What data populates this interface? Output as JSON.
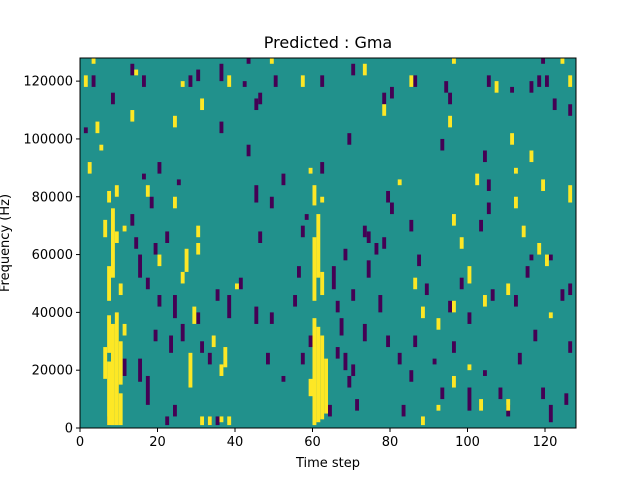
{
  "chart_data": {
    "type": "heatmap",
    "title": "Predicted : Gma",
    "xlabel": "Time step",
    "ylabel": "Frequency (Hz)",
    "xlim": [
      0,
      128
    ],
    "ylim": [
      0,
      128000
    ],
    "x_ticks": [
      0,
      20,
      40,
      60,
      80,
      100,
      120
    ],
    "y_ticks": [
      0,
      20000,
      40000,
      60000,
      80000,
      100000,
      120000
    ],
    "x_tick_labels": [
      "0",
      "20",
      "40",
      "60",
      "80",
      "100",
      "120"
    ],
    "y_tick_labels": [
      "0",
      "20000",
      "40000",
      "60000",
      "80000",
      "100000",
      "120000"
    ],
    "grid": false,
    "legend": "none",
    "colormap": "viridis",
    "levels": {
      "low": -1,
      "mid": 0,
      "high": 1
    },
    "colors": {
      "low": "#440154",
      "mid": "#21918c",
      "high": "#fde725"
    },
    "background_level": 0,
    "freq_bin_hz": 4000,
    "time_bin": 1,
    "high_cells": [
      [
        7,
        1000,
        23000
      ],
      [
        8,
        1000,
        36000
      ],
      [
        9,
        1000,
        40000
      ],
      [
        10,
        1000,
        12000
      ],
      [
        10,
        15000,
        30000
      ],
      [
        6,
        17000,
        28000
      ],
      [
        7,
        26000,
        39000
      ],
      [
        11,
        32000,
        36000
      ],
      [
        8,
        52000,
        76000
      ],
      [
        7,
        44000,
        56000
      ],
      [
        10,
        46000,
        50000
      ],
      [
        6,
        66000,
        72000
      ],
      [
        9,
        64000,
        68000
      ],
      [
        9,
        80000,
        84000
      ],
      [
        7,
        78000,
        82000
      ],
      [
        11,
        68000,
        70000
      ],
      [
        59,
        11000,
        17000
      ],
      [
        60,
        1000,
        38000
      ],
      [
        61,
        2000,
        35000
      ],
      [
        62,
        3000,
        32000
      ],
      [
        63,
        5000,
        24000
      ],
      [
        60,
        44000,
        66000
      ],
      [
        61,
        52000,
        74000
      ],
      [
        62,
        46000,
        54000
      ],
      [
        60,
        77000,
        84000
      ],
      [
        62,
        78000,
        80000
      ],
      [
        59,
        88000,
        90000
      ],
      [
        31,
        1000,
        4000
      ],
      [
        33,
        1000,
        4000
      ],
      [
        36,
        2000,
        4000
      ],
      [
        38,
        1000,
        4000
      ],
      [
        28,
        14000,
        26000
      ],
      [
        34,
        28000,
        32000
      ],
      [
        37,
        21000,
        28000
      ],
      [
        36,
        18000,
        22000
      ],
      [
        29,
        36000,
        42000
      ],
      [
        40,
        48000,
        50000
      ],
      [
        27,
        54000,
        62000
      ],
      [
        26,
        50000,
        54000
      ],
      [
        30,
        60000,
        64000
      ],
      [
        20,
        56000,
        60000
      ],
      [
        17,
        80000,
        84000
      ],
      [
        24,
        76000,
        80000
      ],
      [
        30,
        66000,
        70000
      ],
      [
        88,
        1000,
        4000
      ],
      [
        92,
        6000,
        8000
      ],
      [
        103,
        6000,
        10000
      ],
      [
        96,
        14000,
        18000
      ],
      [
        110,
        6000,
        10000
      ],
      [
        100,
        20000,
        22000
      ],
      [
        92,
        34000,
        38000
      ],
      [
        88,
        38000,
        42000
      ],
      [
        96,
        40000,
        44000
      ],
      [
        104,
        42000,
        46000
      ],
      [
        86,
        48000,
        52000
      ],
      [
        100,
        50000,
        56000
      ],
      [
        110,
        46000,
        50000
      ],
      [
        120,
        56000,
        60000
      ],
      [
        118,
        60000,
        64000
      ],
      [
        121,
        38000,
        40000
      ],
      [
        98,
        62000,
        66000
      ],
      [
        112,
        76000,
        80000
      ],
      [
        102,
        84000,
        88000
      ],
      [
        96,
        70000,
        74000
      ],
      [
        114,
        66000,
        70000
      ],
      [
        3,
        126000,
        128000
      ],
      [
        14,
        122000,
        124000
      ],
      [
        26,
        118000,
        120000
      ],
      [
        38,
        118000,
        122000
      ],
      [
        49,
        126000,
        128000
      ],
      [
        57,
        118000,
        122000
      ],
      [
        73,
        122000,
        126000
      ],
      [
        85,
        118000,
        122000
      ],
      [
        96,
        126000,
        128000
      ],
      [
        107,
        116000,
        120000
      ],
      [
        111,
        98000,
        102000
      ],
      [
        116,
        92000,
        96000
      ],
      [
        124,
        126000,
        128000
      ],
      [
        126,
        118000,
        122000
      ],
      [
        4,
        102000,
        106000
      ],
      [
        13,
        106000,
        110000
      ],
      [
        24,
        104000,
        108000
      ],
      [
        31,
        110000,
        114000
      ],
      [
        78,
        108000,
        112000
      ],
      [
        82,
        84000,
        86000
      ],
      [
        95,
        104000,
        108000
      ],
      [
        112,
        88000,
        90000
      ],
      [
        119,
        82000,
        86000
      ],
      [
        126,
        78000,
        84000
      ],
      [
        2,
        88000,
        92000
      ],
      [
        5,
        96000,
        98000
      ],
      [
        1,
        118000,
        122000
      ]
    ],
    "low_cells": [
      [
        7,
        1000,
        4000
      ],
      [
        22,
        1000,
        4000
      ],
      [
        33,
        1000,
        4000
      ],
      [
        35,
        1000,
        4000
      ],
      [
        24,
        4000,
        8000
      ],
      [
        17,
        8000,
        18000
      ],
      [
        15,
        16000,
        24000
      ],
      [
        11,
        18000,
        24000
      ],
      [
        19,
        30000,
        34000
      ],
      [
        23,
        26000,
        32000
      ],
      [
        26,
        30000,
        36000
      ],
      [
        24,
        38000,
        46000
      ],
      [
        20,
        42000,
        46000
      ],
      [
        17,
        48000,
        52000
      ],
      [
        15,
        52000,
        60000
      ],
      [
        19,
        60000,
        64000
      ],
      [
        22,
        64000,
        68000
      ],
      [
        14,
        62000,
        66000
      ],
      [
        13,
        70000,
        74000
      ],
      [
        18,
        76000,
        80000
      ],
      [
        16,
        86000,
        88000
      ],
      [
        20,
        88000,
        92000
      ],
      [
        25,
        84000,
        86000
      ],
      [
        30,
        36000,
        40000
      ],
      [
        31,
        26000,
        30000
      ],
      [
        33,
        22000,
        26000
      ],
      [
        35,
        44000,
        48000
      ],
      [
        38,
        38000,
        46000
      ],
      [
        41,
        48000,
        52000
      ],
      [
        45,
        36000,
        42000
      ],
      [
        46,
        64000,
        68000
      ],
      [
        49,
        36000,
        40000
      ],
      [
        48,
        22000,
        26000
      ],
      [
        52,
        16000,
        18000
      ],
      [
        57,
        22000,
        26000
      ],
      [
        59,
        28000,
        32000
      ],
      [
        55,
        42000,
        46000
      ],
      [
        57,
        66000,
        70000
      ],
      [
        56,
        52000,
        56000
      ],
      [
        58,
        72000,
        74000
      ],
      [
        49,
        76000,
        80000
      ],
      [
        45,
        78000,
        84000
      ],
      [
        52,
        84000,
        88000
      ],
      [
        43,
        94000,
        98000
      ],
      [
        36,
        102000,
        106000
      ],
      [
        62,
        88000,
        92000
      ],
      [
        65,
        48000,
        56000
      ],
      [
        66,
        40000,
        44000
      ],
      [
        67,
        32000,
        38000
      ],
      [
        68,
        20000,
        26000
      ],
      [
        69,
        14000,
        18000
      ],
      [
        71,
        6000,
        10000
      ],
      [
        64,
        4000,
        8000
      ],
      [
        66,
        24000,
        28000
      ],
      [
        70,
        18000,
        22000
      ],
      [
        68,
        58000,
        62000
      ],
      [
        70,
        44000,
        48000
      ],
      [
        73,
        30000,
        36000
      ],
      [
        74,
        52000,
        58000
      ],
      [
        77,
        40000,
        46000
      ],
      [
        78,
        62000,
        66000
      ],
      [
        79,
        28000,
        32000
      ],
      [
        82,
        22000,
        26000
      ],
      [
        83,
        4000,
        8000
      ],
      [
        85,
        16000,
        20000
      ],
      [
        85,
        68000,
        72000
      ],
      [
        86,
        28000,
        32000
      ],
      [
        87,
        56000,
        60000
      ],
      [
        89,
        46000,
        50000
      ],
      [
        91,
        22000,
        24000
      ],
      [
        93,
        10000,
        14000
      ],
      [
        95,
        40000,
        44000
      ],
      [
        96,
        26000,
        30000
      ],
      [
        98,
        48000,
        52000
      ],
      [
        100,
        36000,
        40000
      ],
      [
        100,
        6000,
        14000
      ],
      [
        103,
        68000,
        72000
      ],
      [
        104,
        18000,
        20000
      ],
      [
        106,
        44000,
        48000
      ],
      [
        108,
        10000,
        14000
      ],
      [
        110,
        4000,
        8000
      ],
      [
        112,
        42000,
        46000
      ],
      [
        113,
        22000,
        26000
      ],
      [
        115,
        52000,
        56000
      ],
      [
        117,
        30000,
        34000
      ],
      [
        119,
        10000,
        14000
      ],
      [
        121,
        2000,
        8000
      ],
      [
        124,
        44000,
        48000
      ],
      [
        126,
        26000,
        30000
      ],
      [
        126,
        46000,
        50000
      ],
      [
        125,
        8000,
        12000
      ],
      [
        116,
        58000,
        60000
      ],
      [
        121,
        58000,
        60000
      ],
      [
        104,
        92000,
        96000
      ],
      [
        105,
        118000,
        122000
      ],
      [
        111,
        116000,
        118000
      ],
      [
        116,
        116000,
        120000
      ],
      [
        118,
        118000,
        122000
      ],
      [
        119,
        126000,
        128000
      ],
      [
        120,
        118000,
        122000
      ],
      [
        122,
        110000,
        114000
      ],
      [
        126,
        108000,
        112000
      ],
      [
        95,
        112000,
        116000
      ],
      [
        94,
        116000,
        120000
      ],
      [
        93,
        96000,
        100000
      ],
      [
        86,
        118000,
        122000
      ],
      [
        80,
        114000,
        118000
      ],
      [
        78,
        112000,
        116000
      ],
      [
        70,
        122000,
        126000
      ],
      [
        69,
        98000,
        102000
      ],
      [
        62,
        118000,
        122000
      ],
      [
        50,
        118000,
        122000
      ],
      [
        46,
        112000,
        116000
      ],
      [
        45,
        110000,
        114000
      ],
      [
        43,
        126000,
        128000
      ],
      [
        42,
        118000,
        120000
      ],
      [
        36,
        120000,
        126000
      ],
      [
        30,
        120000,
        124000
      ],
      [
        28,
        118000,
        122000
      ],
      [
        16,
        118000,
        122000
      ],
      [
        13,
        122000,
        126000
      ],
      [
        8,
        112000,
        116000
      ],
      [
        3,
        118000,
        122000
      ],
      [
        1,
        102000,
        104000
      ],
      [
        105,
        82000,
        86000
      ],
      [
        105,
        74000,
        78000
      ],
      [
        80,
        74000,
        78000
      ],
      [
        79,
        78000,
        82000
      ],
      [
        76,
        60000,
        64000
      ],
      [
        74,
        64000,
        68000
      ],
      [
        73,
        66000,
        70000
      ]
    ]
  }
}
